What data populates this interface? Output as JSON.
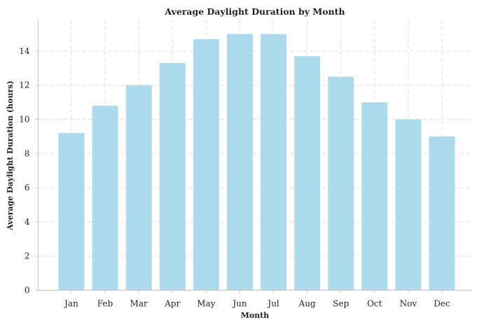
{
  "chart_data": {
    "type": "bar",
    "title": "Average Daylight Duration by Month",
    "xlabel": "Month",
    "ylabel": "Average Daylight Duration (hours)",
    "categories": [
      "Jan",
      "Feb",
      "Mar",
      "Apr",
      "May",
      "Jun",
      "Jul",
      "Aug",
      "Sep",
      "Oct",
      "Nov",
      "Dec"
    ],
    "values": [
      9.2,
      10.8,
      12.0,
      13.3,
      14.7,
      15.0,
      15.0,
      13.7,
      12.5,
      11.0,
      10.0,
      9.0
    ],
    "ylim": [
      0,
      15.8
    ],
    "yticks": [
      0,
      2,
      4,
      6,
      8,
      10,
      12,
      14
    ],
    "grid": true,
    "bar_color": "#a8d9ec"
  }
}
